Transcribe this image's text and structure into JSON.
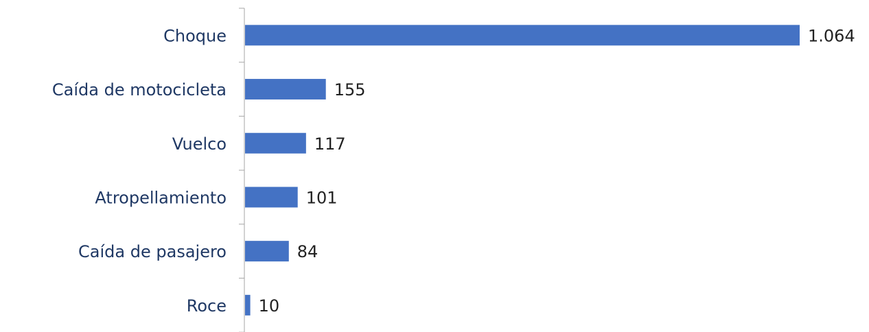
{
  "chart_data": {
    "type": "barh",
    "categories": [
      "Choque",
      "Caída de motocicleta",
      "Vuelco",
      "Atropellamiento",
      "Caída de pasajero",
      "Roce"
    ],
    "values": [
      1064,
      155,
      117,
      101,
      84,
      10
    ],
    "value_labels": [
      "1.064",
      "155",
      "117",
      "101",
      "84",
      "10"
    ],
    "color": "#4472c4"
  }
}
